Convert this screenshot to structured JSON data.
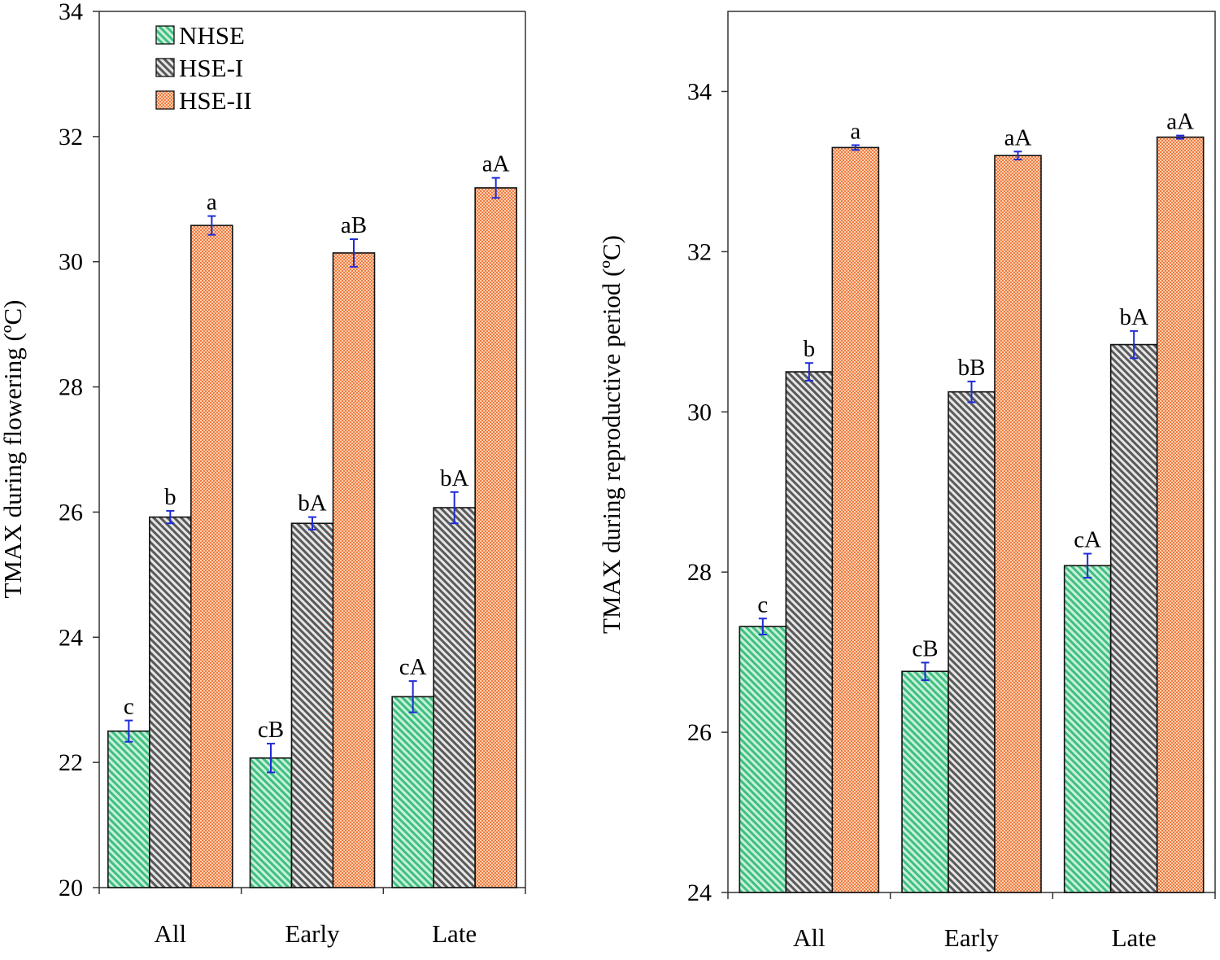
{
  "chart_data": [
    {
      "type": "bar",
      "title": "",
      "xlabel": "",
      "ylabel": "TMAX during flowering (ºC)",
      "ylim": [
        20,
        34
      ],
      "yticks": [
        20,
        22,
        24,
        26,
        28,
        30,
        32,
        34
      ],
      "grid": false,
      "legend_position": "top-left",
      "categories": [
        "All",
        "Early",
        "Late"
      ],
      "series": [
        {
          "name": "NHSE",
          "values": [
            22.5,
            22.07,
            23.05
          ],
          "errors": [
            0.17,
            0.23,
            0.25
          ],
          "labels": [
            "c",
            "cB",
            "cA"
          ]
        },
        {
          "name": "HSE-I",
          "values": [
            25.92,
            25.82,
            26.07
          ],
          "errors": [
            0.1,
            0.1,
            0.25
          ],
          "labels": [
            "b",
            "bA",
            "bA"
          ]
        },
        {
          "name": "HSE-II",
          "values": [
            30.58,
            30.14,
            31.18
          ],
          "errors": [
            0.15,
            0.22,
            0.16
          ],
          "labels": [
            "a",
            "aB",
            "aA"
          ]
        }
      ]
    },
    {
      "type": "bar",
      "title": "",
      "xlabel": "",
      "ylabel": "TMAX during reproductive period (ºC)",
      "ylim": [
        24,
        35
      ],
      "yticks": [
        24,
        26,
        28,
        30,
        32,
        34
      ],
      "grid": false,
      "legend_position": "none",
      "categories": [
        "All",
        "Early",
        "Late"
      ],
      "series": [
        {
          "name": "NHSE",
          "values": [
            27.32,
            26.76,
            28.08
          ],
          "errors": [
            0.1,
            0.11,
            0.15
          ],
          "labels": [
            "c",
            "cB",
            "cA"
          ]
        },
        {
          "name": "HSE-I",
          "values": [
            30.5,
            30.25,
            30.84
          ],
          "errors": [
            0.11,
            0.13,
            0.17
          ],
          "labels": [
            "b",
            "bB",
            "bA"
          ]
        },
        {
          "name": "HSE-II",
          "values": [
            33.3,
            33.2,
            33.43
          ],
          "errors": [
            0.03,
            0.05,
            0.02
          ],
          "labels": [
            "a",
            "aA",
            "aA"
          ]
        }
      ]
    }
  ],
  "colors": {
    "NHSE": "#43bf84",
    "HSE-I": "#6e6e6e",
    "HSE-II": "#f58e5a",
    "error_bar": "#1f2bd6",
    "axis": "#333333"
  }
}
